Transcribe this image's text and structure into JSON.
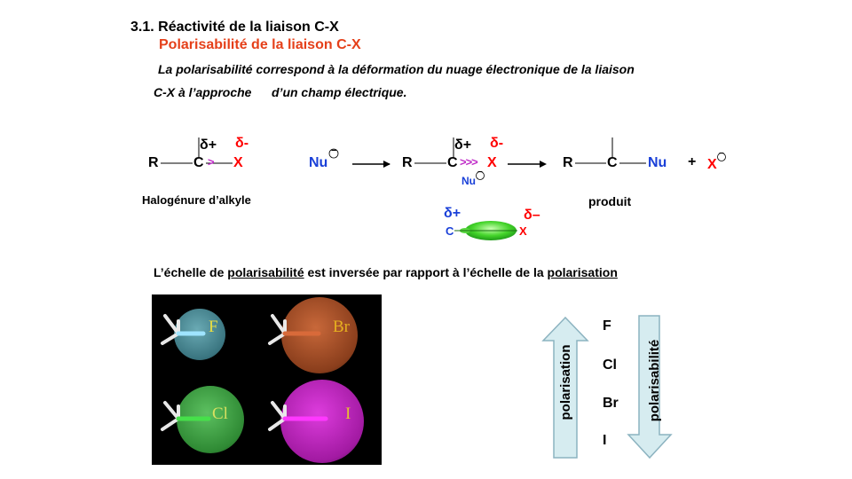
{
  "header": {
    "title": "3.1. Réactivité de la liaison C-X",
    "subtitle": "Polarisabilité de la liaison C-X"
  },
  "intro": {
    "line1": "La polarisabilité correspond à la déformation du nuage électronique de la liaison",
    "line2_part1": "C-X à l’approche",
    "line2_part2": "d’un champ électrique."
  },
  "scheme": {
    "R": "R",
    "C": "C",
    "X": "X",
    "Nu": "Nu",
    "delta_plus": "δ+",
    "delta_minus": "δ-",
    "minus_sign": "−",
    "plus_sign": "+",
    "substrate_label": "Halogénure d’alkyle",
    "product_label": "produit",
    "arrow_double": ">>>",
    "arrow_single": ">",
    "delta_minus_alt": "δ–"
  },
  "scale_statement": {
    "part1": "L’échelle de",
    "link1": "polarisabilité",
    "part2": "est inversée par rapport à l’échelle de la",
    "link2": "polarisation"
  },
  "halogen_panel": {
    "labels": [
      "F",
      "Br",
      "Cl",
      "I"
    ],
    "colors": {
      "F": "#4a8a96",
      "Br": "#9a4a22",
      "Cl": "#2f8a34",
      "I": "#a21aa2"
    }
  },
  "scale": {
    "halogens": [
      "F",
      "Cl",
      "Br",
      "I"
    ],
    "up_arrow_label": "polarisation",
    "down_arrow_label": "polarisabilité",
    "arrow_color": "#d6ecf0",
    "arrow_border": "#8cb3c0"
  }
}
